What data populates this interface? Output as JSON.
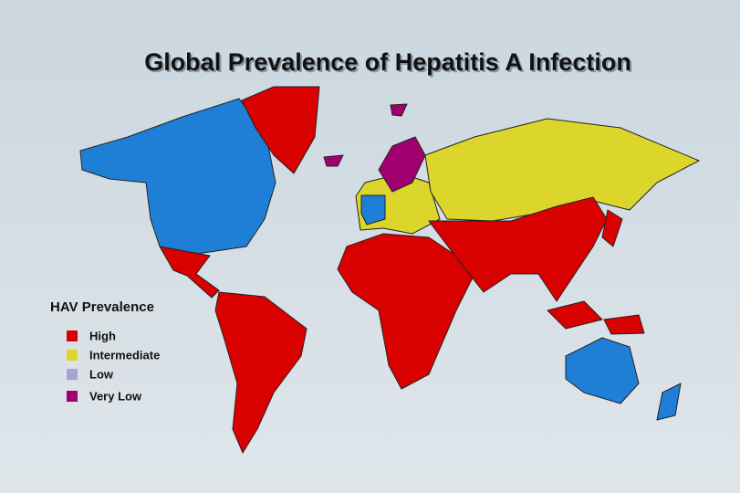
{
  "title": "Global Prevalence of Hepatitis A Infection",
  "legend": {
    "title": "HAV Prevalence",
    "items": [
      {
        "label": "High",
        "color": "#d90000"
      },
      {
        "label": "Intermediate",
        "color": "#dcd62c"
      },
      {
        "label": "Low",
        "color": "#aaa2d2"
      },
      {
        "label": "Very Low",
        "color": "#a0006e"
      }
    ]
  }
}
